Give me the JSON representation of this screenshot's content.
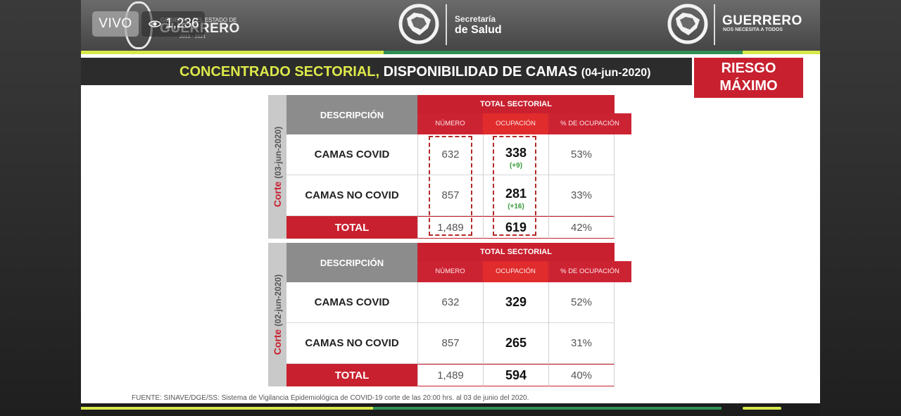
{
  "live": {
    "badge": "VIVO",
    "viewers": "1,236",
    "eye_icon": "eye-icon"
  },
  "header": {
    "gob_logo_small": "GOBIERNO DEL ESTADO DE",
    "gob_logo_big": "GUERRERO",
    "gob_logo_years": "2015 - 2021",
    "salud_line1": "Secretaría",
    "salud_line2": "de Salud",
    "guerrero_line1": "GUERRERO",
    "guerrero_line2": "NOS NECESITA A TODOS"
  },
  "title": {
    "part_a": "CONCENTRADO SECTORIAL,",
    "part_b": "DISPONIBILIDAD DE CAMAS",
    "part_c": "(04-jun-2020)"
  },
  "riesgo": {
    "line1": "RIESGO",
    "line2": "MÁXIMO"
  },
  "colors": {
    "red": "#c8202f",
    "accent_yellow": "#dde84a",
    "accent_green": "#2f8f55",
    "gray_header": "#8c8c8c"
  },
  "tables": [
    {
      "side_label_prefix": "Corte",
      "side_label_date": "(03-jun-2020)",
      "col_descripcion": "DESCRIPCIÓN",
      "col_total_sectorial": "TOTAL SECTORIAL",
      "col_numero": "NÚMERO",
      "col_ocupacion": "OCUPACIÓN",
      "col_pct": "% DE OCUPACIÓN",
      "rows": [
        {
          "desc": "CAMAS COVID",
          "numero": "632",
          "ocupacion": "338",
          "delta": "(+9)",
          "pct": "53%"
        },
        {
          "desc": "CAMAS NO COVID",
          "numero": "857",
          "ocupacion": "281",
          "delta": "(+16)",
          "pct": "33%"
        }
      ],
      "total": {
        "desc": "TOTAL",
        "numero": "1,489",
        "ocupacion": "619",
        "pct": "42%"
      }
    },
    {
      "side_label_prefix": "Corte",
      "side_label_date": "(02-jun-2020)",
      "col_descripcion": "DESCRIPCIÓN",
      "col_total_sectorial": "TOTAL SECTORIAL",
      "col_numero": "NÚMERO",
      "col_ocupacion": "OCUPACIÓN",
      "col_pct": "% DE OCUPACIÓN",
      "rows": [
        {
          "desc": "CAMAS COVID",
          "numero": "632",
          "ocupacion": "329",
          "pct": "52%"
        },
        {
          "desc": "CAMAS NO COVID",
          "numero": "857",
          "ocupacion": "265",
          "pct": "31%"
        }
      ],
      "total": {
        "desc": "TOTAL",
        "numero": "1,489",
        "ocupacion": "594",
        "pct": "40%"
      }
    }
  ],
  "fuente": "FUENTE: SINAVE/DGE/SS: Sistema de Vigilancia Epidemiológica de COVID-19 corte de las 20:00 hrs. al 03 de junio del 2020."
}
